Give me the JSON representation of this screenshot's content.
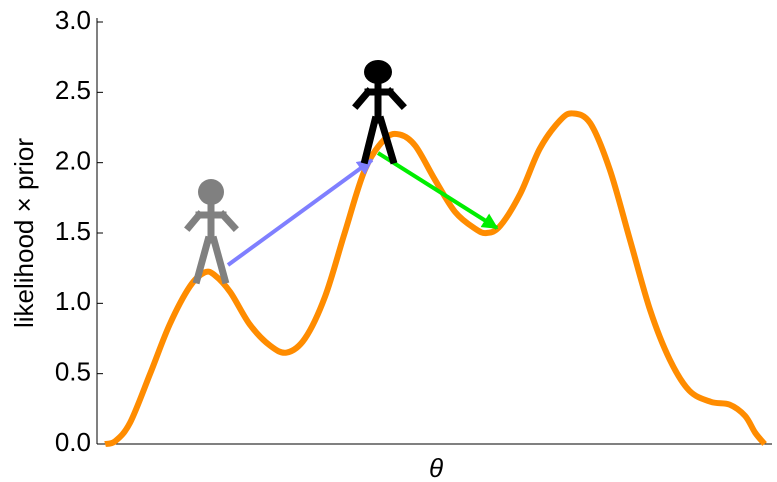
{
  "chart_data": {
    "type": "line",
    "xlabel": "θ",
    "ylabel": "likelihood × prior",
    "x": [
      0.12,
      0.27,
      0.49,
      0.79,
      1.08,
      1.38,
      1.6,
      1.75,
      1.98,
      2.27,
      2.57,
      2.82,
      3.09,
      3.39,
      3.68,
      3.98,
      4.28,
      4.5,
      4.73,
      5.02,
      5.32,
      5.62,
      5.79,
      5.99,
      6.29,
      6.58,
      6.88,
      7.07,
      7.33,
      7.62,
      7.92,
      8.22,
      8.51,
      8.8,
      9.12,
      9.4,
      9.63,
      9.78,
      9.92
    ],
    "series": [
      {
        "color": "#ff8c00",
        "values": [
          0.0,
          0.02,
          0.15,
          0.5,
          0.85,
          1.12,
          1.22,
          1.2,
          1.08,
          0.85,
          0.7,
          0.65,
          0.75,
          1.05,
          1.5,
          1.95,
          2.17,
          2.2,
          2.12,
          1.88,
          1.65,
          1.53,
          1.5,
          1.55,
          1.78,
          2.1,
          2.3,
          2.35,
          2.28,
          1.95,
          1.45,
          0.95,
          0.6,
          0.38,
          0.3,
          0.28,
          0.2,
          0.08,
          0.0
        ]
      }
    ],
    "xlim": [
      0,
      10
    ],
    "ylim": [
      0,
      3
    ],
    "yticks": [
      {
        "value": 0,
        "label": "0.0"
      },
      {
        "value": 0.5,
        "label": "0.5"
      },
      {
        "value": 1,
        "label": "1.0"
      },
      {
        "value": 1.5,
        "label": "1.5"
      },
      {
        "value": 2,
        "label": "2.0"
      },
      {
        "value": 2.5,
        "label": "2.5"
      },
      {
        "value": 3,
        "label": "3.0"
      }
    ],
    "grid": false
  }
}
